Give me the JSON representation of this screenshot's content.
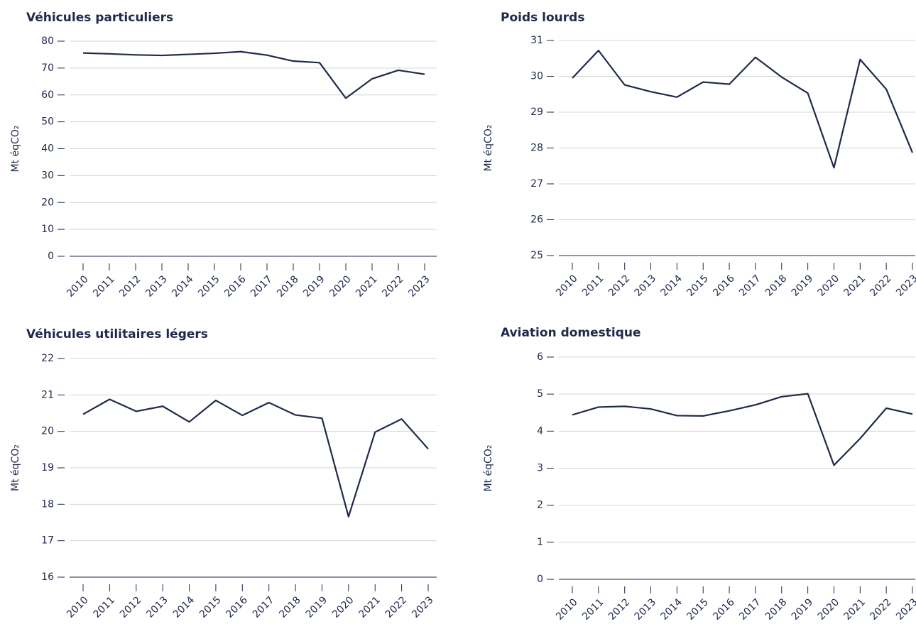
{
  "chart_data": [
    {
      "type": "line",
      "title": "Véhicules particuliers",
      "ylabel": "Mt éqCO₂",
      "color": "#1f2a4b",
      "categories": [
        "2010",
        "2011",
        "2012",
        "2013",
        "2014",
        "2015",
        "2016",
        "2017",
        "2018",
        "2019",
        "2020",
        "2021",
        "2022",
        "2023"
      ],
      "values": [
        75.6,
        75.3,
        74.9,
        74.7,
        75.1,
        75.5,
        76.1,
        74.8,
        72.6,
        72.0,
        58.8,
        66.0,
        69.2,
        67.7
      ],
      "ylim": [
        0,
        80
      ],
      "yticks": [
        0,
        10,
        20,
        30,
        40,
        50,
        60,
        70,
        80
      ],
      "grid": true
    },
    {
      "type": "line",
      "title": "Poids lourds",
      "ylabel": "Mt éqCO₂",
      "color": "#1f2a4b",
      "categories": [
        "2010",
        "2011",
        "2012",
        "2013",
        "2014",
        "2015",
        "2016",
        "2017",
        "2018",
        "2019",
        "2020",
        "2021",
        "2022",
        "2023"
      ],
      "values": [
        29.95,
        30.72,
        29.76,
        29.57,
        29.42,
        29.84,
        29.78,
        30.53,
        29.98,
        29.53,
        27.45,
        30.47,
        29.64,
        27.87
      ],
      "ylim": [
        25,
        31
      ],
      "yticks": [
        25,
        26,
        27,
        28,
        29,
        30,
        31
      ],
      "grid": true
    },
    {
      "type": "line",
      "title": "Véhicules utilitaires légers",
      "ylabel": "Mt éqCO₂",
      "color": "#1f2a4b",
      "categories": [
        "2010",
        "2011",
        "2012",
        "2013",
        "2014",
        "2015",
        "2016",
        "2017",
        "2018",
        "2019",
        "2020",
        "2021",
        "2022",
        "2023"
      ],
      "values": [
        20.47,
        20.88,
        20.55,
        20.69,
        20.26,
        20.85,
        20.44,
        20.79,
        20.45,
        20.36,
        17.66,
        19.98,
        20.34,
        19.52
      ],
      "ylim": [
        16,
        22
      ],
      "yticks": [
        16,
        17,
        18,
        19,
        20,
        21,
        22
      ],
      "grid": true
    },
    {
      "type": "line",
      "title": "Aviation domestique",
      "ylabel": "Mt éqCO₂",
      "color": "#1f2a4b",
      "categories": [
        "2010",
        "2011",
        "2012",
        "2013",
        "2014",
        "2015",
        "2016",
        "2017",
        "2018",
        "2019",
        "2020",
        "2021",
        "2022",
        "2023"
      ],
      "values": [
        4.44,
        4.65,
        4.67,
        4.6,
        4.42,
        4.41,
        4.55,
        4.71,
        4.93,
        5.01,
        3.08,
        3.8,
        4.62,
        4.46
      ],
      "ylim": [
        0,
        6
      ],
      "yticks": [
        0,
        1,
        2,
        3,
        4,
        5,
        6
      ],
      "grid": true
    }
  ]
}
